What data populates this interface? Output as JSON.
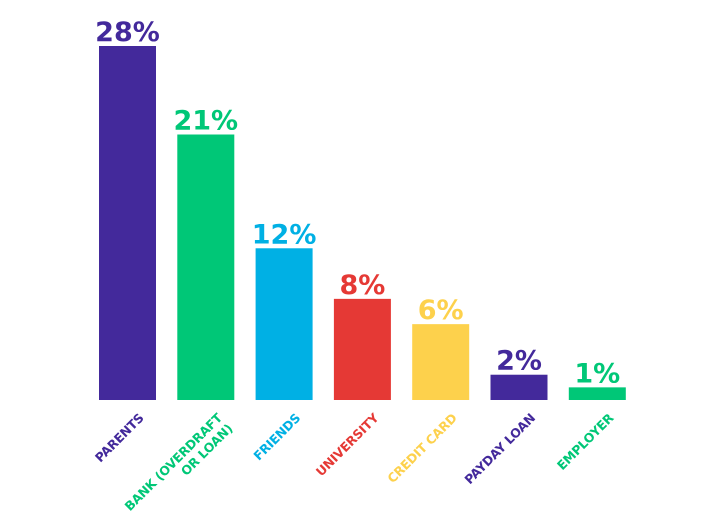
{
  "chart_data": {
    "type": "bar",
    "title": "",
    "xlabel": "",
    "ylabel": "",
    "ylim": [
      0,
      28
    ],
    "grid": false,
    "categories": [
      [
        "PARENTS"
      ],
      [
        "BANK (OVERDRAFT",
        "OR LOAN)"
      ],
      [
        "FRIENDS"
      ],
      [
        "UNIVERSITY"
      ],
      [
        "CREDIT CARD"
      ],
      [
        "PAYDAY LOAN"
      ],
      [
        "EMPLOYER"
      ]
    ],
    "values": [
      28,
      21,
      12,
      8,
      6,
      2,
      1
    ],
    "value_labels": [
      "28%",
      "21%",
      "12%",
      "8%",
      "6%",
      "2%",
      "1%"
    ],
    "colors": [
      "#43299b",
      "#00c777",
      "#00b0e4",
      "#e53935",
      "#fdd14c",
      "#43299b",
      "#00c777"
    ]
  }
}
